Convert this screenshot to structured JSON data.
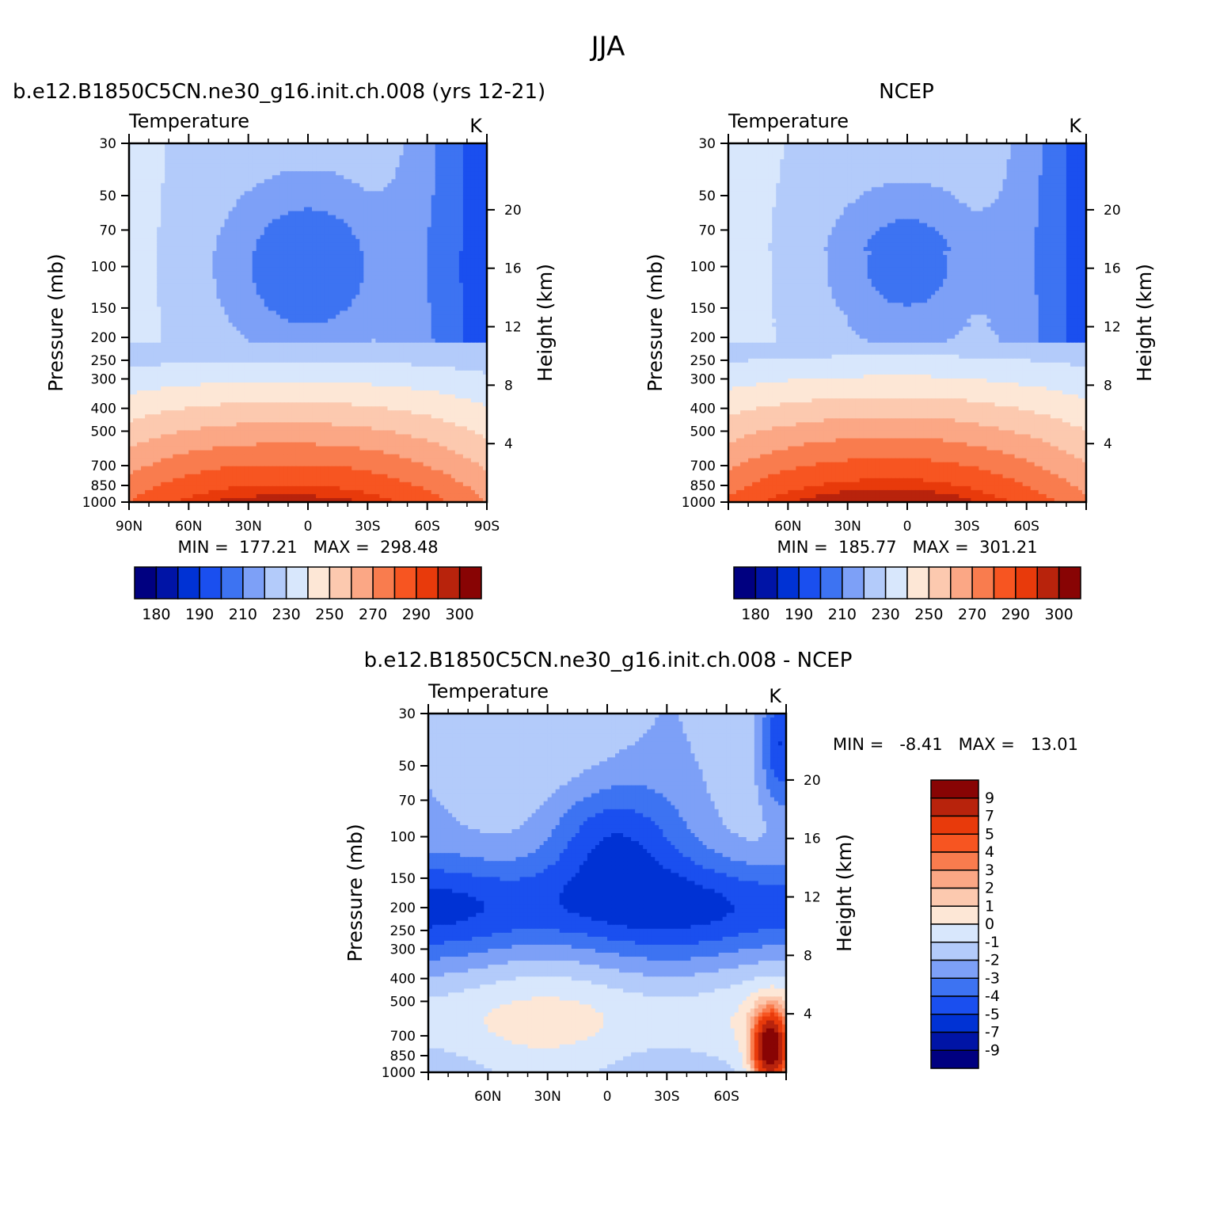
{
  "figure": {
    "title": "JJA"
  },
  "palettes": {
    "abs": [
      "#000080",
      "#0014a6",
      "#0032d4",
      "#1a4fef",
      "#3d73f2",
      "#7da0f7",
      "#b3cbfa",
      "#d8e7fc",
      "#fde7d6",
      "#fcc9af",
      "#fba785",
      "#f97c4e",
      "#f75521",
      "#e83a0b",
      "#b8230c",
      "#880404"
    ],
    "diff": [
      "#000080",
      "#0014a6",
      "#0032d4",
      "#1a4fef",
      "#3d73f2",
      "#7da0f7",
      "#b3cbfa",
      "#d8e7fc",
      "#fde7d6",
      "#fcc9af",
      "#fba785",
      "#f97c4e",
      "#f75521",
      "#e83a0b",
      "#b8230c",
      "#880404"
    ]
  },
  "chart_data": [
    {
      "type": "heatmap",
      "title": "b.e12.B1850C5CN.ne30_g16.init.ch.008 (yrs 12-21)",
      "variable": "Temperature",
      "units": "K",
      "ylabel": "Pressure (mb)",
      "y2label": "Height (km)",
      "x_ticks": [
        "90N",
        "60N",
        "30N",
        "0",
        "30S",
        "60S",
        "90S"
      ],
      "y_ticks": [
        "30",
        "50",
        "70",
        "100",
        "150",
        "200",
        "250",
        "300",
        "400",
        "500",
        "700",
        "850",
        "1000"
      ],
      "y2_ticks": [
        "20",
        "16",
        "12",
        "8",
        "4"
      ],
      "stats": "MIN =  177.21   MAX =  298.48",
      "min": 177.21,
      "max": 298.48,
      "levels": [
        180,
        185,
        190,
        200,
        210,
        220,
        230,
        240,
        250,
        260,
        270,
        280,
        290,
        295,
        300
      ],
      "level_labels": [
        "180",
        "190",
        "210",
        "230",
        "250",
        "270",
        "290",
        "300"
      ],
      "model": "model1"
    },
    {
      "type": "heatmap",
      "title": "NCEP",
      "variable": "Temperature",
      "units": "K",
      "ylabel": "Pressure (mb)",
      "y2label": "Height (km)",
      "x_ticks": [
        "",
        "60N",
        "30N",
        "0",
        "30S",
        "60S",
        ""
      ],
      "y_ticks": [
        "30",
        "50",
        "70",
        "100",
        "150",
        "200",
        "250",
        "300",
        "400",
        "500",
        "700",
        "850",
        "1000"
      ],
      "y2_ticks": [
        "20",
        "16",
        "12",
        "8",
        "4"
      ],
      "stats": "MIN =  185.77   MAX =  301.21",
      "min": 185.77,
      "max": 301.21,
      "levels": [
        180,
        185,
        190,
        200,
        210,
        220,
        230,
        240,
        250,
        260,
        270,
        280,
        290,
        295,
        300
      ],
      "level_labels": [
        "180",
        "190",
        "210",
        "230",
        "250",
        "270",
        "290",
        "300"
      ],
      "model": "model2"
    },
    {
      "type": "heatmap",
      "title": "b.e12.B1850C5CN.ne30_g16.init.ch.008 - NCEP",
      "variable": "Temperature",
      "units": "K",
      "ylabel": "Pressure (mb)",
      "y2label": "Height (km)",
      "x_ticks": [
        "",
        "60N",
        "30N",
        "0",
        "30S",
        "60S",
        ""
      ],
      "y_ticks": [
        "30",
        "50",
        "70",
        "100",
        "150",
        "200",
        "250",
        "300",
        "400",
        "500",
        "700",
        "850",
        "1000"
      ],
      "y2_ticks": [
        "20",
        "16",
        "12",
        "8",
        "4"
      ],
      "stats": "MIN =   -8.41   MAX =   13.01",
      "min": -8.41,
      "max": 13.01,
      "levels": [
        -9,
        -7,
        -5,
        -4,
        -3,
        -2,
        -1,
        0,
        1,
        2,
        3,
        4,
        5,
        7,
        9
      ],
      "level_labels": [
        "-9",
        "-7",
        "-5",
        "-4",
        "-3",
        "-2",
        "-1",
        "0",
        "1",
        "2",
        "3",
        "4",
        "5",
        "7",
        "9"
      ],
      "model": "diff"
    }
  ]
}
